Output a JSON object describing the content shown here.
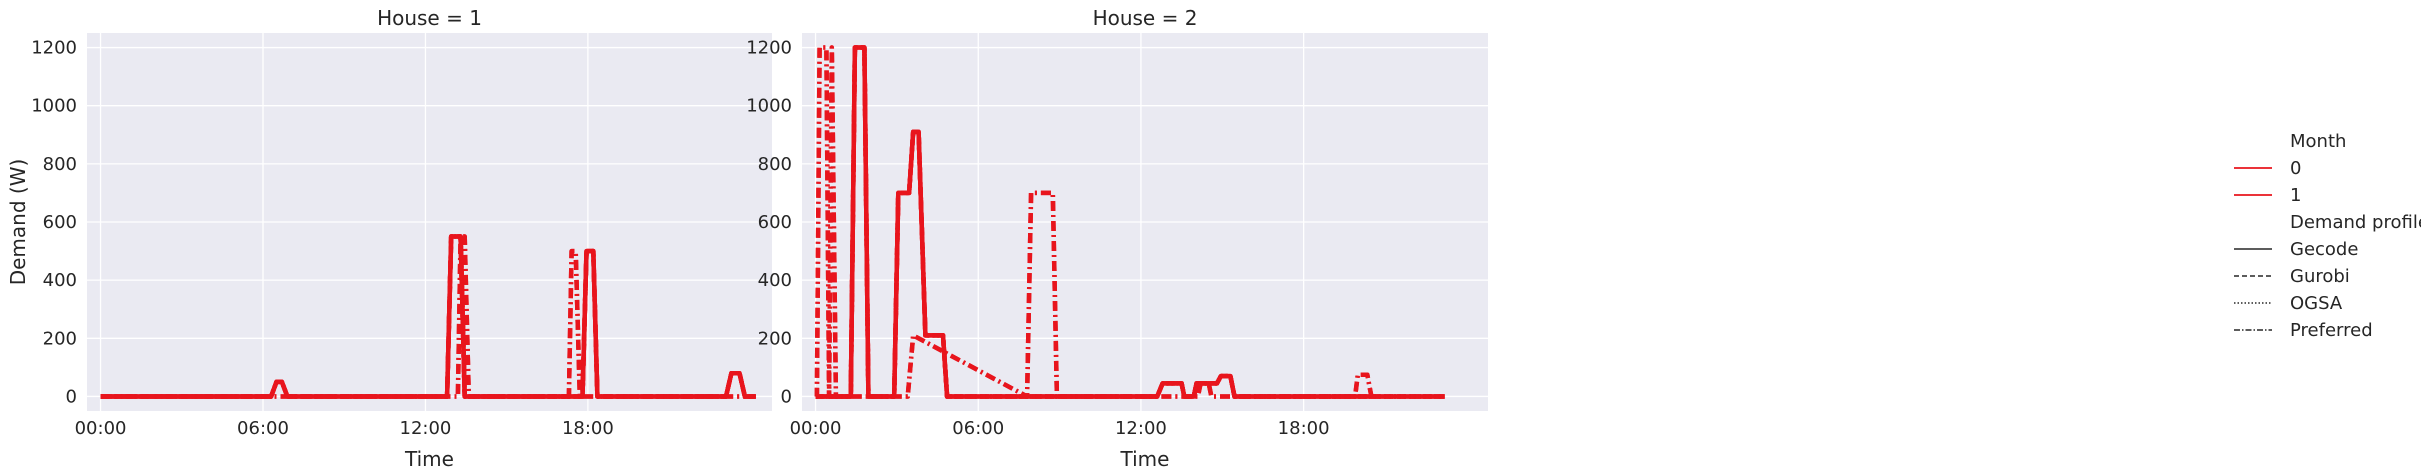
{
  "chart_data": [
    {
      "type": "line",
      "title": "House = 1",
      "xlabel": "Time",
      "ylabel": "Demand (W)",
      "x_unit": "hour",
      "xlim": [
        -0.5,
        24.8
      ],
      "ylim": [
        -50,
        1250
      ],
      "xticks": [
        "00:00",
        "06:00",
        "12:00",
        "18:00"
      ],
      "yticks": [
        0,
        200,
        400,
        600,
        800,
        1000,
        1200
      ],
      "grid": true,
      "series": [
        {
          "name": "0 / Gecode",
          "month": "0",
          "profile": "Gecode",
          "color": "#e8151d",
          "dash": "solid",
          "x": [
            0,
            6.3,
            6.5,
            6.7,
            6.9,
            12.8,
            12.95,
            13.3,
            13.45,
            17.8,
            17.95,
            18.2,
            18.35,
            23.1,
            23.3,
            23.6,
            23.8,
            24.2
          ],
          "y": [
            0,
            0,
            50,
            50,
            0,
            0,
            550,
            550,
            0,
            0,
            500,
            500,
            0,
            0,
            80,
            80,
            0,
            0
          ]
        },
        {
          "name": "0 / Gurobi",
          "month": "0",
          "profile": "Gurobi",
          "color": "#e8151d",
          "dash": "dashed",
          "x": [
            0,
            6.3,
            6.5,
            6.7,
            6.9,
            12.8,
            12.95,
            13.3,
            13.45,
            17.8,
            17.95,
            18.2,
            18.35,
            23.1,
            23.3,
            23.6,
            23.8,
            24.2
          ],
          "y": [
            0,
            0,
            50,
            50,
            0,
            0,
            550,
            550,
            0,
            0,
            500,
            500,
            0,
            0,
            80,
            80,
            0,
            0
          ]
        },
        {
          "name": "0 / OGSA",
          "month": "0",
          "profile": "OGSA",
          "color": "#e8151d",
          "dash": "dotted",
          "x": [
            0,
            6.3,
            6.5,
            6.7,
            6.9,
            12.8,
            12.95,
            13.3,
            13.45,
            17.8,
            17.95,
            18.2,
            18.35,
            23.1,
            23.3,
            23.6,
            23.8,
            24.2
          ],
          "y": [
            0,
            0,
            50,
            50,
            0,
            0,
            550,
            550,
            0,
            0,
            500,
            500,
            0,
            0,
            80,
            80,
            0,
            0
          ]
        },
        {
          "name": "0 / Preferred",
          "month": "0",
          "profile": "Preferred",
          "color": "#e8151d",
          "dash": "dashdot",
          "x": [
            0,
            13.2,
            13.3,
            13.45,
            13.6,
            17.3,
            17.4,
            17.55,
            17.7,
            24.2
          ],
          "y": [
            0,
            0,
            550,
            550,
            0,
            0,
            500,
            500,
            0,
            0
          ]
        },
        {
          "name": "1 / Gecode",
          "month": "1",
          "profile": "Gecode",
          "color": "#e8151d",
          "dash": "solid",
          "x": [
            0,
            6.3,
            6.5,
            6.7,
            6.9,
            12.8,
            12.95,
            13.3,
            13.45,
            17.8,
            17.95,
            18.2,
            18.35,
            23.1,
            23.3,
            23.6,
            23.8,
            24.2
          ],
          "y": [
            0,
            0,
            50,
            50,
            0,
            0,
            550,
            550,
            0,
            0,
            500,
            500,
            0,
            0,
            80,
            80,
            0,
            0
          ]
        },
        {
          "name": "1 / Gurobi",
          "month": "1",
          "profile": "Gurobi",
          "color": "#e8151d",
          "dash": "dashed",
          "x": [
            0,
            6.3,
            6.5,
            6.7,
            6.9,
            12.8,
            12.95,
            13.3,
            13.45,
            17.8,
            17.95,
            18.2,
            18.35,
            23.1,
            23.3,
            23.6,
            23.8,
            24.2
          ],
          "y": [
            0,
            0,
            50,
            50,
            0,
            0,
            550,
            550,
            0,
            0,
            500,
            500,
            0,
            0,
            80,
            80,
            0,
            0
          ]
        },
        {
          "name": "1 / OGSA",
          "month": "1",
          "profile": "OGSA",
          "color": "#e8151d",
          "dash": "dotted",
          "x": [
            0,
            6.3,
            6.5,
            6.7,
            6.9,
            12.8,
            12.95,
            13.3,
            13.45,
            17.8,
            17.95,
            18.2,
            18.35,
            23.1,
            23.3,
            23.6,
            23.8,
            24.2
          ],
          "y": [
            0,
            0,
            50,
            50,
            0,
            0,
            550,
            550,
            0,
            0,
            500,
            500,
            0,
            0,
            80,
            80,
            0,
            0
          ]
        },
        {
          "name": "1 / Preferred",
          "month": "1",
          "profile": "Preferred",
          "color": "#e8151d",
          "dash": "dashdot",
          "x": [
            0,
            13.2,
            13.3,
            13.45,
            13.6,
            17.3,
            17.4,
            17.55,
            17.7,
            24.2
          ],
          "y": [
            0,
            0,
            550,
            550,
            0,
            0,
            500,
            500,
            0,
            0
          ]
        }
      ]
    },
    {
      "type": "line",
      "title": "House = 2",
      "xlabel": "Time",
      "ylabel": "",
      "x_unit": "hour",
      "xlim": [
        -0.5,
        24.8
      ],
      "ylim": [
        -50,
        1250
      ],
      "xticks": [
        "00:00",
        "06:00",
        "12:00",
        "18:00"
      ],
      "yticks": [
        0,
        200,
        400,
        600,
        800,
        1000,
        1200
      ],
      "grid": true,
      "series": [
        {
          "name": "0 / Gecode",
          "month": "0",
          "profile": "Gecode",
          "color": "#e8151d",
          "dash": "solid",
          "x": [
            0,
            1.3,
            1.45,
            1.8,
            1.95,
            2.9,
            3.05,
            3.45,
            3.6,
            3.8,
            4.05,
            4.7,
            4.85,
            12.6,
            12.8,
            13.5,
            13.6,
            13.95,
            14.05,
            14.8,
            14.95,
            15.3,
            15.45,
            23.2
          ],
          "y": [
            0,
            0,
            1200,
            1200,
            0,
            0,
            700,
            700,
            910,
            910,
            210,
            210,
            0,
            0,
            45,
            45,
            0,
            0,
            45,
            45,
            70,
            70,
            0,
            0
          ]
        },
        {
          "name": "0 / Gurobi",
          "month": "0",
          "profile": "Gurobi",
          "color": "#e8151d",
          "dash": "dashed",
          "x": [
            0,
            1.3,
            1.45,
            1.8,
            1.95,
            2.9,
            3.05,
            3.45,
            3.6,
            3.8,
            4.05,
            4.7,
            4.85,
            12.6,
            12.8,
            13.5,
            13.6,
            13.95,
            14.05,
            14.8,
            14.95,
            15.3,
            15.45,
            23.2
          ],
          "y": [
            0,
            0,
            1200,
            1200,
            0,
            0,
            700,
            700,
            910,
            910,
            210,
            210,
            0,
            0,
            45,
            45,
            0,
            0,
            45,
            45,
            70,
            70,
            0,
            0
          ]
        },
        {
          "name": "0 / OGSA",
          "month": "0",
          "profile": "OGSA",
          "color": "#e8151d",
          "dash": "dotted",
          "x": [
            0,
            1.3,
            1.45,
            1.8,
            1.95,
            2.9,
            3.05,
            3.45,
            3.6,
            3.8,
            4.05,
            4.7,
            4.85,
            12.6,
            12.8,
            13.5,
            13.6,
            13.95,
            14.05,
            14.8,
            14.95,
            15.3,
            15.45,
            23.2
          ],
          "y": [
            0,
            0,
            1200,
            1200,
            0,
            0,
            700,
            700,
            910,
            910,
            210,
            210,
            0,
            0,
            45,
            45,
            0,
            0,
            45,
            45,
            70,
            70,
            0,
            0
          ]
        },
        {
          "name": "0 / Preferred",
          "month": "0",
          "profile": "Preferred",
          "color": "#e8151d",
          "dash": "dashdot",
          "x": [
            0,
            0.05,
            0.15,
            0.4,
            0.5,
            0.6,
            0.75,
            3.4,
            3.6,
            7.8,
            7.95,
            8.75,
            8.9,
            14.1,
            14.2,
            14.5,
            14.6,
            19.9,
            20.0,
            20.35,
            20.5
          ],
          "y": [
            0,
            0,
            1200,
            1200,
            0,
            1200,
            0,
            0,
            210,
            0,
            700,
            700,
            0,
            0,
            45,
            45,
            0,
            0,
            75,
            75,
            0
          ]
        },
        {
          "name": "1 / Gecode",
          "month": "1",
          "profile": "Gecode",
          "color": "#e8151d",
          "dash": "solid",
          "x": [
            0,
            1.3,
            1.45,
            1.8,
            1.95,
            2.9,
            3.05,
            3.45,
            3.6,
            3.8,
            4.05,
            4.7,
            4.85,
            12.6,
            12.8,
            13.5,
            13.6,
            13.95,
            14.05,
            14.8,
            14.95,
            15.3,
            15.45,
            23.2
          ],
          "y": [
            0,
            0,
            1200,
            1200,
            0,
            0,
            700,
            700,
            910,
            910,
            210,
            210,
            0,
            0,
            45,
            45,
            0,
            0,
            45,
            45,
            70,
            70,
            0,
            0
          ]
        },
        {
          "name": "1 / Gurobi",
          "month": "1",
          "profile": "Gurobi",
          "color": "#e8151d",
          "dash": "dashed",
          "x": [
            0,
            1.3,
            1.45,
            1.8,
            1.95,
            2.9,
            3.05,
            3.45,
            3.6,
            3.8,
            4.05,
            4.7,
            4.85,
            12.6,
            12.8,
            13.5,
            13.6,
            13.95,
            14.05,
            14.8,
            14.95,
            15.3,
            15.45,
            23.2
          ],
          "y": [
            0,
            0,
            1200,
            1200,
            0,
            0,
            700,
            700,
            910,
            910,
            210,
            210,
            0,
            0,
            45,
            45,
            0,
            0,
            45,
            45,
            70,
            70,
            0,
            0
          ]
        },
        {
          "name": "1 / OGSA",
          "month": "1",
          "profile": "OGSA",
          "color": "#e8151d",
          "dash": "dotted",
          "x": [
            0,
            1.3,
            1.45,
            1.8,
            1.95,
            2.9,
            3.05,
            3.45,
            3.6,
            3.8,
            4.05,
            4.7,
            4.85,
            12.6,
            12.8,
            13.5,
            13.6,
            13.95,
            14.05,
            14.8,
            14.95,
            15.3,
            15.45,
            23.2
          ],
          "y": [
            0,
            0,
            1200,
            1200,
            0,
            0,
            700,
            700,
            910,
            910,
            210,
            210,
            0,
            0,
            45,
            45,
            0,
            0,
            45,
            45,
            70,
            70,
            0,
            0
          ]
        },
        {
          "name": "1 / Preferred",
          "month": "1",
          "profile": "Preferred",
          "color": "#e8151d",
          "dash": "dashdot",
          "x": [
            0,
            0.05,
            0.15,
            0.4,
            0.5,
            0.6,
            0.75,
            3.4,
            3.6,
            7.8,
            7.95,
            8.75,
            8.9,
            14.1,
            14.2,
            14.5,
            14.6,
            19.9,
            20.0,
            20.35,
            20.5
          ],
          "y": [
            0,
            0,
            1200,
            1200,
            0,
            1200,
            0,
            0,
            210,
            0,
            700,
            700,
            0,
            0,
            45,
            45,
            0,
            0,
            75,
            75,
            0
          ]
        }
      ]
    }
  ],
  "legend": {
    "placement": "right",
    "month_title": "Month",
    "month_entries": [
      {
        "label": "0",
        "color": "#e8151d"
      },
      {
        "label": "1",
        "color": "#e8151d"
      }
    ],
    "profile_title": "Demand profile",
    "profile_entries": [
      {
        "label": "Gecode",
        "dash": "solid"
      },
      {
        "label": "Gurobi",
        "dash": "dashed"
      },
      {
        "label": "OGSA",
        "dash": "dotted"
      },
      {
        "label": "Preferred",
        "dash": "dashdot"
      }
    ]
  },
  "colors": {
    "plot_background": "#eaeaf2",
    "grid": "#ffffff",
    "series": "#e8151d",
    "legend_line": "#262626"
  }
}
